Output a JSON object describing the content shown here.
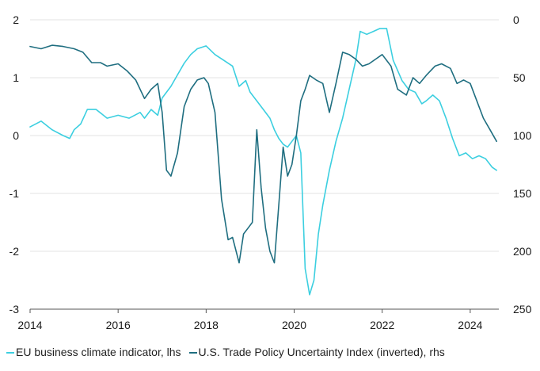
{
  "chart_data": {
    "type": "line",
    "title": "",
    "x_ticks": [
      "2014",
      "2016",
      "2018",
      "2020",
      "2022",
      "2024"
    ],
    "xlim": [
      2014.0,
      2024.65
    ],
    "left_axis": {
      "ticks": [
        "2",
        "1",
        "0",
        "-1",
        "-2",
        "-3"
      ],
      "ylim": [
        -3,
        2
      ]
    },
    "right_axis": {
      "ticks": [
        "0",
        "50",
        "100",
        "150",
        "200",
        "250"
      ],
      "ylim": [
        0,
        250
      ],
      "inverted": true
    },
    "grid": "horizontal",
    "legend_position": "bottom",
    "series": [
      {
        "name": "EU business climate indicator, lhs",
        "axis": "left",
        "color": "#3ccfe0",
        "x": [
          2014.0,
          2014.25,
          2014.5,
          2014.75,
          2014.9,
          2015.0,
          2015.15,
          2015.3,
          2015.5,
          2015.75,
          2016.0,
          2016.25,
          2016.5,
          2016.6,
          2016.75,
          2016.9,
          2017.0,
          2017.2,
          2017.35,
          2017.5,
          2017.65,
          2017.8,
          2018.0,
          2018.2,
          2018.4,
          2018.6,
          2018.75,
          2018.9,
          2019.0,
          2019.15,
          2019.3,
          2019.45,
          2019.55,
          2019.65,
          2019.75,
          2019.85,
          2019.95,
          2020.05,
          2020.15,
          2020.25,
          2020.35,
          2020.45,
          2020.55,
          2020.65,
          2020.8,
          2020.95,
          2021.1,
          2021.25,
          2021.4,
          2021.5,
          2021.65,
          2021.8,
          2021.95,
          2022.1,
          2022.25,
          2022.45,
          2022.6,
          2022.75,
          2022.9,
          2023.0,
          2023.15,
          2023.3,
          2023.45,
          2023.6,
          2023.75,
          2023.9,
          2024.05,
          2024.2,
          2024.35,
          2024.5,
          2024.6
        ],
        "y": [
          0.15,
          0.25,
          0.1,
          0.0,
          -0.05,
          0.1,
          0.2,
          0.45,
          0.45,
          0.3,
          0.35,
          0.3,
          0.4,
          0.3,
          0.45,
          0.35,
          0.65,
          0.85,
          1.05,
          1.25,
          1.4,
          1.5,
          1.55,
          1.4,
          1.3,
          1.2,
          0.85,
          0.95,
          0.75,
          0.6,
          0.45,
          0.3,
          0.1,
          -0.05,
          -0.15,
          -0.2,
          -0.1,
          0.0,
          -0.3,
          -2.3,
          -2.75,
          -2.5,
          -1.7,
          -1.2,
          -0.6,
          -0.1,
          0.3,
          0.8,
          1.3,
          1.8,
          1.75,
          1.8,
          1.85,
          1.85,
          1.3,
          0.95,
          0.8,
          0.75,
          0.55,
          0.6,
          0.7,
          0.6,
          0.3,
          -0.05,
          -0.35,
          -0.3,
          -0.4,
          -0.35,
          -0.4,
          -0.55,
          -0.6
        ]
      },
      {
        "name": "U.S. Trade Policy Uncertainty Index (inverted), rhs",
        "axis": "right",
        "color": "#1f6e80",
        "x": [
          2014.0,
          2014.25,
          2014.5,
          2014.75,
          2015.0,
          2015.2,
          2015.4,
          2015.6,
          2015.75,
          2016.0,
          2016.2,
          2016.4,
          2016.6,
          2016.75,
          2016.9,
          2017.0,
          2017.1,
          2017.2,
          2017.35,
          2017.5,
          2017.65,
          2017.8,
          2017.95,
          2018.05,
          2018.2,
          2018.35,
          2018.5,
          2018.6,
          2018.75,
          2018.85,
          2018.95,
          2019.05,
          2019.15,
          2019.25,
          2019.35,
          2019.45,
          2019.55,
          2019.65,
          2019.75,
          2019.85,
          2019.95,
          2020.05,
          2020.15,
          2020.25,
          2020.35,
          2020.5,
          2020.65,
          2020.8,
          2020.95,
          2021.1,
          2021.25,
          2021.4,
          2021.55,
          2021.7,
          2021.85,
          2022.0,
          2022.2,
          2022.35,
          2022.55,
          2022.7,
          2022.85,
          2023.0,
          2023.2,
          2023.35,
          2023.55,
          2023.7,
          2023.85,
          2024.0,
          2024.15,
          2024.3,
          2024.45,
          2024.6
        ],
        "y": [
          23,
          25,
          22,
          23,
          25,
          28,
          37,
          37,
          40,
          38,
          44,
          52,
          68,
          60,
          55,
          80,
          130,
          135,
          115,
          75,
          60,
          52,
          50,
          55,
          80,
          155,
          190,
          188,
          210,
          185,
          180,
          175,
          95,
          145,
          180,
          200,
          210,
          160,
          110,
          135,
          125,
          100,
          70,
          60,
          48,
          52,
          55,
          80,
          55,
          28,
          30,
          34,
          40,
          38,
          34,
          30,
          40,
          60,
          65,
          50,
          55,
          48,
          40,
          38,
          42,
          55,
          52,
          55,
          70,
          85,
          95,
          105
        ]
      }
    ]
  }
}
